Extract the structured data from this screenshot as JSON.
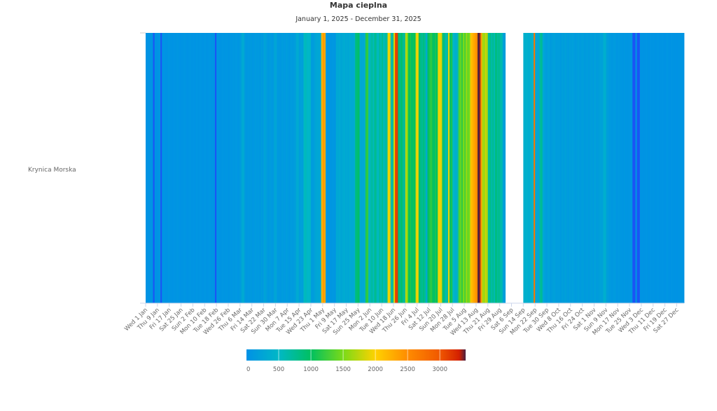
{
  "chart_data": {
    "type": "heatmap",
    "title": "Mapa cieplna",
    "subtitle": "January 1, 2025 - December 31, 2025",
    "rows": [
      "Krynica Morska"
    ],
    "x_tick_labels": [
      "Wed 1 Jan",
      "Thu 9 Jan",
      "Fri 17 Jan",
      "Sat 25 Jan",
      "Sun 2 Feb",
      "Mon 10 Feb",
      "Tue 18 Feb",
      "Wed 26 Feb",
      "Thu 6 Mar",
      "Fri 14 Mar",
      "Sat 22 Mar",
      "Sun 30 Mar",
      "Mon 7 Apr",
      "Tue 15 Apr",
      "Wed 23 Apr",
      "Thu 1 May",
      "Fri 9 May",
      "Sat 17 May",
      "Sun 25 May",
      "Mon 2 Jun",
      "Tue 10 Jun",
      "Wed 18 Jun",
      "Thu 26 Jun",
      "Fri 4 Jul",
      "Sat 12 Jul",
      "Sun 20 Jul",
      "Mon 28 Jul",
      "Tue 5 Aug",
      "Wed 13 Aug",
      "Thu 21 Aug",
      "Fri 29 Aug",
      "Sat 6 Sep",
      "Sun 14 Sep",
      "Mon 22 Sep",
      "Tue 30 Sep",
      "Wed 8 Oct",
      "Thu 16 Oct",
      "Fri 24 Oct",
      "Sat 1 Nov",
      "Sun 9 Nov",
      "Mon 17 Nov",
      "Tue 25 Nov",
      "Wed 3 Dec",
      "Thu 11 Dec",
      "Fri 19 Dec",
      "Sat 27 Dec"
    ],
    "values": [
      30,
      40,
      30,
      50,
      40,
      -200,
      40,
      30,
      50,
      60,
      -200,
      40,
      50,
      30,
      40,
      60,
      50,
      40,
      30,
      50,
      40,
      60,
      50,
      30,
      40,
      50,
      60,
      40,
      30,
      50,
      60,
      40,
      50,
      30,
      60,
      40,
      50,
      70,
      40,
      50,
      60,
      40,
      50,
      60,
      40,
      50,
      30,
      -200,
      60,
      50,
      40,
      60,
      80,
      50,
      70,
      60,
      40,
      80,
      60,
      90,
      80,
      100,
      60,
      90,
      150,
      320,
      300,
      120,
      80,
      100,
      90,
      120,
      80,
      100,
      130,
      90,
      110,
      80,
      150,
      100,
      230,
      200,
      110,
      90,
      140,
      100,
      120,
      260,
      240,
      100,
      120,
      90,
      140,
      110,
      100,
      160,
      130,
      90,
      150,
      120,
      140,
      180,
      320,
      300,
      150,
      200,
      170,
      520,
      560,
      480,
      500,
      450,
      160,
      140,
      200,
      260,
      280,
      250,
      300,
      2200,
      2400,
      2300,
      100,
      60,
      80,
      70,
      90,
      60,
      80,
      300,
      280,
      320,
      260,
      300,
      350,
      280,
      310,
      270,
      330,
      290,
      300,
      360,
      850,
      900,
      950,
      320,
      280,
      300,
      350,
      1150,
      1200,
      450,
      600,
      700,
      550,
      800,
      650,
      500,
      700,
      600,
      750,
      550,
      650,
      700,
      1950,
      1900,
      600,
      700,
      1850,
      3100,
      3150,
      900,
      800,
      950,
      750,
      700,
      1750,
      1500,
      1000,
      1100,
      950,
      1050,
      1000,
      1900,
      1950,
      1000,
      800,
      750,
      850,
      700,
      300,
      1000,
      1100,
      1200,
      1050,
      950,
      1100,
      1000,
      1900,
      1950,
      1850,
      900,
      800,
      600,
      700,
      1900,
      1000,
      1100,
      500,
      400,
      350,
      600,
      1300,
      1400,
      1200,
      1500,
      1300,
      1600,
      1400,
      1500,
      2100,
      2200,
      2300,
      2400,
      2500,
      3400,
      3350,
      2400,
      1700,
      1600,
      1800,
      1650,
      700,
      800,
      650,
      750,
      600,
      900,
      700,
      800,
      650,
      600,
      200,
      150,
      null,
      null,
      null,
      null,
      null,
      null,
      null,
      null,
      null,
      null,
      null,
      null,
      400,
      380,
      420,
      350,
      400,
      450,
      380,
      2700,
      260,
      280,
      240,
      700,
      750,
      300,
      200,
      150,
      180,
      220,
      120,
      150,
      200,
      180,
      140,
      160,
      150,
      120,
      180,
      140,
      200,
      160,
      130,
      170,
      150,
      190,
      140,
      120,
      160,
      180,
      130,
      150,
      170,
      120,
      140,
      160,
      120,
      150,
      180,
      130,
      200,
      160,
      140,
      180,
      220,
      200,
      350,
      400,
      200,
      150,
      120,
      100,
      90,
      130,
      110,
      80,
      100,
      90,
      80,
      70,
      90,
      60,
      80,
      70,
      60,
      50,
      -200,
      -200,
      40,
      -200,
      -200,
      50,
      40,
      30,
      40,
      50,
      40,
      30,
      50,
      40,
      60,
      30,
      40,
      50,
      30,
      40,
      50,
      40,
      30,
      60,
      40,
      30,
      50,
      40,
      30,
      40,
      30,
      40,
      50,
      60,
      40
    ],
    "colorbar": {
      "range": [
        0,
        3400
      ],
      "tick_labels": [
        "0",
        "500",
        "1000",
        "1500",
        "2000",
        "2500",
        "3000"
      ],
      "tick_values": [
        0,
        500,
        1000,
        1500,
        2000,
        2500,
        3000
      ],
      "stops": [
        {
          "value": 0,
          "color": "#0091e6"
        },
        {
          "value": 500,
          "color": "#00b8c6"
        },
        {
          "value": 1000,
          "color": "#00c060"
        },
        {
          "value": 1500,
          "color": "#7ada18"
        },
        {
          "value": 2000,
          "color": "#ffd200"
        },
        {
          "value": 2500,
          "color": "#ff8c00"
        },
        {
          "value": 3000,
          "color": "#f05800"
        },
        {
          "value": 3300,
          "color": "#d42000"
        },
        {
          "value": 3400,
          "color": "#4a2040"
        }
      ],
      "below_min_color": "#1a55f5"
    },
    "missing_color": "#ffffff",
    "legend_position": "bottom",
    "grid": false
  }
}
